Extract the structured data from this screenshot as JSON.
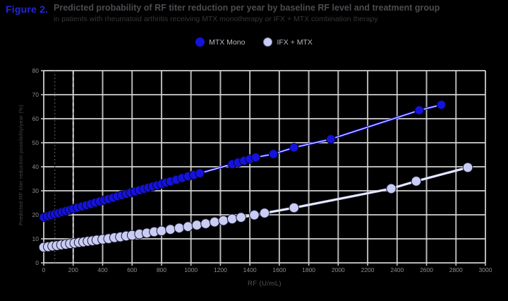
{
  "figure_label": "Figure 2.",
  "title": {
    "line1": "Predicted probability of RF titer reduction per year by baseline RF level and treatment group",
    "line2": "in patients with rheumatoid arthritis receiving MTX monotherapy or IFX + MTX combination therapy"
  },
  "legend": [
    {
      "label": "MTX Mono",
      "color": "#1512dd"
    },
    {
      "label": "IFX + MTX",
      "color": "#c9cdf4"
    }
  ],
  "axes": {
    "x_label": "RF (U/mL)",
    "y_label": "Predicted RF titer reduction possibility/year (%)"
  },
  "colors": {
    "background": "#000000",
    "grid": "#d8d8d8",
    "tick_text": "#8e8e94",
    "figure_label": "#2525e2",
    "title_text": "#4d4d52"
  },
  "chart_data": {
    "type": "scatter",
    "title": "Predicted probability of RF titer reduction per year by baseline RF level and treatment group",
    "xlabel": "RF (U/mL)",
    "ylabel": "Predicted RF titer reduction possibility/year (%)",
    "xlim": [
      0,
      3000
    ],
    "ylim": [
      0,
      80
    ],
    "xticks": [
      0,
      200,
      400,
      600,
      800,
      1000,
      1200,
      1400,
      1600,
      1800,
      2000,
      2200,
      2400,
      2600,
      2800,
      3000
    ],
    "yticks": [
      0,
      10,
      20,
      30,
      40,
      50,
      60,
      70,
      80
    ],
    "grid": true,
    "legend_position": "top-center",
    "reference_lines": [
      {
        "axis": "x",
        "value": 75,
        "style": "dotted",
        "color": "#55555a"
      },
      {
        "axis": "x",
        "value": 200,
        "style": "dashed",
        "color": "#e8e8e8"
      }
    ],
    "series": [
      {
        "name": "MTX Mono",
        "color": "#1512dd",
        "marker_edge": "#05051a",
        "marker_radius": 6.2,
        "points": [
          [
            0,
            19
          ],
          [
            25,
            19.4
          ],
          [
            50,
            19.9
          ],
          [
            75,
            20.3
          ],
          [
            100,
            20.7
          ],
          [
            125,
            21.2
          ],
          [
            150,
            21.6
          ],
          [
            175,
            22
          ],
          [
            200,
            22.5
          ],
          [
            230,
            23
          ],
          [
            260,
            23.5
          ],
          [
            290,
            24
          ],
          [
            320,
            24.5
          ],
          [
            350,
            25.1
          ],
          [
            380,
            25.6
          ],
          [
            410,
            26.1
          ],
          [
            440,
            26.6
          ],
          [
            470,
            27.1
          ],
          [
            500,
            27.7
          ],
          [
            530,
            28.2
          ],
          [
            560,
            28.7
          ],
          [
            590,
            29.2
          ],
          [
            620,
            29.7
          ],
          [
            650,
            30.2
          ],
          [
            680,
            30.8
          ],
          [
            710,
            31.3
          ],
          [
            740,
            31.8
          ],
          [
            770,
            32.3
          ],
          [
            800,
            32.8
          ],
          [
            830,
            33.4
          ],
          [
            860,
            33.9
          ],
          [
            900,
            34.6
          ],
          [
            940,
            35.3
          ],
          [
            980,
            36
          ],
          [
            1020,
            36.6
          ],
          [
            1060,
            37.3
          ],
          [
            1280,
            41.1
          ],
          [
            1320,
            41.8
          ],
          [
            1360,
            42.5
          ],
          [
            1400,
            43.2
          ],
          [
            1440,
            43.9
          ],
          [
            1560,
            45.3
          ],
          [
            1700,
            48
          ],
          [
            1950,
            51.5
          ],
          [
            2550,
            63.5
          ],
          [
            2700,
            65.8
          ]
        ]
      },
      {
        "name": "IFX + MTX",
        "color": "#c9cdf4",
        "marker_edge": "#1b1b30",
        "marker_radius": 6.8,
        "points": [
          [
            0,
            6.5
          ],
          [
            30,
            6.7
          ],
          [
            60,
            7
          ],
          [
            90,
            7.2
          ],
          [
            120,
            7.5
          ],
          [
            150,
            7.7
          ],
          [
            180,
            8
          ],
          [
            210,
            8.2
          ],
          [
            240,
            8.5
          ],
          [
            270,
            8.7
          ],
          [
            300,
            9
          ],
          [
            330,
            9.2
          ],
          [
            360,
            9.5
          ],
          [
            400,
            9.8
          ],
          [
            440,
            10.1
          ],
          [
            480,
            10.5
          ],
          [
            520,
            10.8
          ],
          [
            560,
            11.2
          ],
          [
            600,
            11.5
          ],
          [
            650,
            12
          ],
          [
            700,
            12.4
          ],
          [
            750,
            12.9
          ],
          [
            800,
            13.3
          ],
          [
            860,
            13.9
          ],
          [
            920,
            14.5
          ],
          [
            980,
            15.1
          ],
          [
            1040,
            15.7
          ],
          [
            1100,
            16.3
          ],
          [
            1160,
            17
          ],
          [
            1220,
            17.6
          ],
          [
            1280,
            18.3
          ],
          [
            1340,
            18.9
          ],
          [
            1430,
            19.9
          ],
          [
            1500,
            20.7
          ],
          [
            1700,
            22.9
          ],
          [
            2360,
            30.9
          ],
          [
            2530,
            34
          ],
          [
            2880,
            39.7
          ]
        ]
      }
    ]
  }
}
